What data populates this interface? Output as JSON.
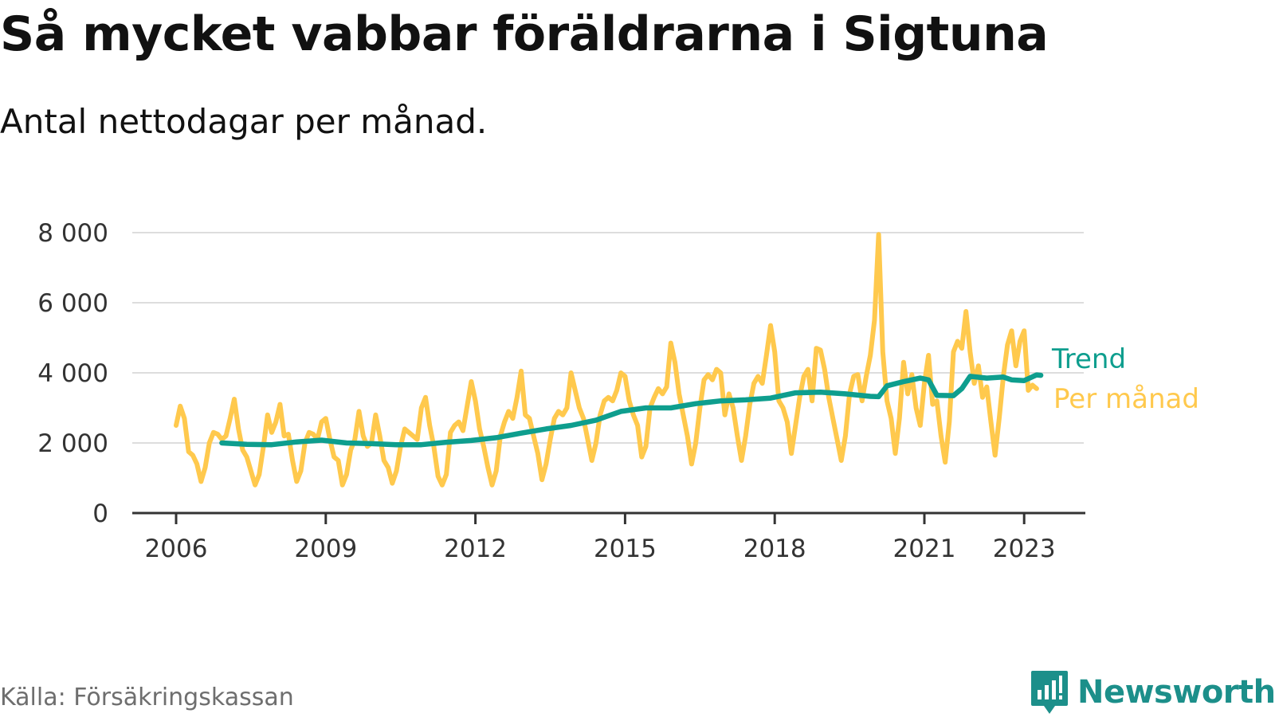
{
  "header": {
    "title": "Så mycket vabbar föräldrarna i Sigtuna",
    "subtitle": "Antal nettodagar per månad."
  },
  "footer": {
    "source": "Källa: Försäkringskassan",
    "brand": "Newsworthy",
    "brand_icon": "newsworthy-logo-icon"
  },
  "colors": {
    "monthly": "#FFC94D",
    "trend": "#0E9E8E",
    "grid": "#DDDDDD",
    "axis": "#333333",
    "brand": "#1C8F8A"
  },
  "chart_data": {
    "type": "line",
    "title": "Så mycket vabbar föräldrarna i Sigtuna",
    "subtitle": "Antal nettodagar per månad.",
    "xlabel": "",
    "ylabel": "",
    "xlim": [
      "2006-01",
      "2024-01"
    ],
    "ylim": [
      0,
      8000
    ],
    "x_ticks": [
      {
        "x": "2006-01",
        "label": "2006"
      },
      {
        "x": "2009-01",
        "label": "2009"
      },
      {
        "x": "2012-01",
        "label": "2012"
      },
      {
        "x": "2015-01",
        "label": "2015"
      },
      {
        "x": "2018-01",
        "label": "2018"
      },
      {
        "x": "2021-01",
        "label": "2021"
      },
      {
        "x": "2023-01",
        "label": "2023"
      }
    ],
    "y_ticks": [
      {
        "y": 0,
        "label": "0"
      },
      {
        "y": 2000,
        "label": "2 000"
      },
      {
        "y": 4000,
        "label": "4 000"
      },
      {
        "y": 6000,
        "label": "6 000"
      },
      {
        "y": 8000,
        "label": "8 000"
      }
    ],
    "grid": true,
    "legend": "inline labels at right end of lines",
    "series": [
      {
        "name": "Per månad",
        "label_position": "right",
        "points": [
          [
            "2006-01",
            2500
          ],
          [
            "2006-02",
            3050
          ],
          [
            "2006-03",
            2700
          ],
          [
            "2006-04",
            1750
          ],
          [
            "2006-05",
            1650
          ],
          [
            "2006-06",
            1400
          ],
          [
            "2006-07",
            900
          ],
          [
            "2006-08",
            1300
          ],
          [
            "2006-09",
            2000
          ],
          [
            "2006-10",
            2300
          ],
          [
            "2006-11",
            2250
          ],
          [
            "2006-12",
            2100
          ],
          [
            "2007-01",
            2200
          ],
          [
            "2007-02",
            2700
          ],
          [
            "2007-03",
            3250
          ],
          [
            "2007-04",
            2400
          ],
          [
            "2007-05",
            1800
          ],
          [
            "2007-06",
            1600
          ],
          [
            "2007-07",
            1200
          ],
          [
            "2007-08",
            800
          ],
          [
            "2007-09",
            1100
          ],
          [
            "2007-10",
            1900
          ],
          [
            "2007-11",
            2800
          ],
          [
            "2007-12",
            2300
          ],
          [
            "2008-01",
            2600
          ],
          [
            "2008-02",
            3100
          ],
          [
            "2008-03",
            2200
          ],
          [
            "2008-04",
            2250
          ],
          [
            "2008-05",
            1500
          ],
          [
            "2008-06",
            900
          ],
          [
            "2008-07",
            1200
          ],
          [
            "2008-08",
            2000
          ],
          [
            "2008-09",
            2300
          ],
          [
            "2008-10",
            2250
          ],
          [
            "2008-11",
            2100
          ],
          [
            "2008-12",
            2600
          ],
          [
            "2009-01",
            2700
          ],
          [
            "2009-02",
            2100
          ],
          [
            "2009-03",
            1600
          ],
          [
            "2009-04",
            1500
          ],
          [
            "2009-05",
            800
          ],
          [
            "2009-06",
            1100
          ],
          [
            "2009-07",
            1800
          ],
          [
            "2009-08",
            2100
          ],
          [
            "2009-09",
            2900
          ],
          [
            "2009-10",
            2200
          ],
          [
            "2009-11",
            1900
          ],
          [
            "2009-12",
            2000
          ],
          [
            "2010-01",
            2800
          ],
          [
            "2010-02",
            2200
          ],
          [
            "2010-03",
            1500
          ],
          [
            "2010-04",
            1300
          ],
          [
            "2010-05",
            850
          ],
          [
            "2010-06",
            1200
          ],
          [
            "2010-07",
            1900
          ],
          [
            "2010-08",
            2400
          ],
          [
            "2010-09",
            2300
          ],
          [
            "2010-10",
            2200
          ],
          [
            "2010-11",
            2100
          ],
          [
            "2010-12",
            3000
          ],
          [
            "2011-01",
            3300
          ],
          [
            "2011-02",
            2500
          ],
          [
            "2011-03",
            1900
          ],
          [
            "2011-04",
            1050
          ],
          [
            "2011-05",
            800
          ],
          [
            "2011-06",
            1100
          ],
          [
            "2011-07",
            2300
          ],
          [
            "2011-08",
            2500
          ],
          [
            "2011-09",
            2600
          ],
          [
            "2011-10",
            2350
          ],
          [
            "2011-12",
            3750
          ],
          [
            "2012-01",
            3200
          ],
          [
            "2012-02",
            2400
          ],
          [
            "2012-03",
            1900
          ],
          [
            "2012-04",
            1300
          ],
          [
            "2012-05",
            800
          ],
          [
            "2012-06",
            1200
          ],
          [
            "2012-07",
            2200
          ],
          [
            "2012-08",
            2600
          ],
          [
            "2012-09",
            2900
          ],
          [
            "2012-10",
            2700
          ],
          [
            "2012-11",
            3300
          ],
          [
            "2012-12",
            4050
          ],
          [
            "2013-01",
            2800
          ],
          [
            "2013-02",
            2700
          ],
          [
            "2013-03",
            2200
          ],
          [
            "2013-04",
            1700
          ],
          [
            "2013-05",
            950
          ],
          [
            "2013-06",
            1400
          ],
          [
            "2013-07",
            2100
          ],
          [
            "2013-08",
            2700
          ],
          [
            "2013-09",
            2900
          ],
          [
            "2013-10",
            2800
          ],
          [
            "2013-11",
            3000
          ],
          [
            "2013-12",
            4000
          ],
          [
            "2014-01",
            3500
          ],
          [
            "2014-02",
            3000
          ],
          [
            "2014-03",
            2700
          ],
          [
            "2014-04",
            2100
          ],
          [
            "2014-05",
            1500
          ],
          [
            "2014-06",
            2000
          ],
          [
            "2014-07",
            2800
          ],
          [
            "2014-08",
            3200
          ],
          [
            "2014-09",
            3300
          ],
          [
            "2014-10",
            3200
          ],
          [
            "2014-11",
            3500
          ],
          [
            "2014-12",
            4000
          ],
          [
            "2015-01",
            3900
          ],
          [
            "2015-02",
            3200
          ],
          [
            "2015-03",
            2800
          ],
          [
            "2015-04",
            2500
          ],
          [
            "2015-05",
            1600
          ],
          [
            "2015-06",
            1900
          ],
          [
            "2015-07",
            3000
          ],
          [
            "2015-08",
            3300
          ],
          [
            "2015-09",
            3550
          ],
          [
            "2015-10",
            3400
          ],
          [
            "2015-11",
            3600
          ],
          [
            "2015-12",
            4850
          ],
          [
            "2016-01",
            4300
          ],
          [
            "2016-02",
            3400
          ],
          [
            "2016-03",
            2800
          ],
          [
            "2016-04",
            2200
          ],
          [
            "2016-05",
            1400
          ],
          [
            "2016-06",
            2000
          ],
          [
            "2016-07",
            3000
          ],
          [
            "2016-08",
            3800
          ],
          [
            "2016-09",
            3950
          ],
          [
            "2016-10",
            3800
          ],
          [
            "2016-11",
            4100
          ],
          [
            "2016-12",
            4000
          ],
          [
            "2017-01",
            2800
          ],
          [
            "2017-02",
            3400
          ],
          [
            "2017-03",
            3000
          ],
          [
            "2017-04",
            2200
          ],
          [
            "2017-05",
            1500
          ],
          [
            "2017-06",
            2200
          ],
          [
            "2017-07",
            3100
          ],
          [
            "2017-08",
            3700
          ],
          [
            "2017-09",
            3900
          ],
          [
            "2017-10",
            3700
          ],
          [
            "2017-11",
            4500
          ],
          [
            "2017-12",
            5350
          ],
          [
            "2018-01",
            4600
          ],
          [
            "2018-02",
            3200
          ],
          [
            "2018-03",
            3000
          ],
          [
            "2018-04",
            2600
          ],
          [
            "2018-05",
            1700
          ],
          [
            "2018-06",
            2500
          ],
          [
            "2018-07",
            3300
          ],
          [
            "2018-08",
            3900
          ],
          [
            "2018-09",
            4100
          ],
          [
            "2018-10",
            3200
          ],
          [
            "2018-11",
            4700
          ],
          [
            "2018-12",
            4650
          ],
          [
            "2019-01",
            4100
          ],
          [
            "2019-02",
            3300
          ],
          [
            "2019-03",
            2700
          ],
          [
            "2019-04",
            2100
          ],
          [
            "2019-05",
            1500
          ],
          [
            "2019-06",
            2200
          ],
          [
            "2019-07",
            3400
          ],
          [
            "2019-08",
            3900
          ],
          [
            "2019-09",
            3950
          ],
          [
            "2019-10",
            3200
          ],
          [
            "2019-11",
            3900
          ],
          [
            "2019-12",
            4500
          ],
          [
            "2020-01",
            5500
          ],
          [
            "2020-02",
            7950
          ],
          [
            "2020-03",
            4600
          ],
          [
            "2020-04",
            3200
          ],
          [
            "2020-05",
            2700
          ],
          [
            "2020-06",
            1700
          ],
          [
            "2020-07",
            2700
          ],
          [
            "2020-08",
            4300
          ],
          [
            "2020-09",
            3400
          ],
          [
            "2020-10",
            3950
          ],
          [
            "2020-11",
            3000
          ],
          [
            "2020-12",
            2500
          ],
          [
            "2021-01",
            3700
          ],
          [
            "2021-02",
            4500
          ],
          [
            "2021-03",
            3100
          ],
          [
            "2021-04",
            3200
          ],
          [
            "2021-05",
            2200
          ],
          [
            "2021-06",
            1450
          ],
          [
            "2021-07",
            2600
          ],
          [
            "2021-08",
            4600
          ],
          [
            "2021-09",
            4900
          ],
          [
            "2021-10",
            4700
          ],
          [
            "2021-11",
            5750
          ],
          [
            "2021-12",
            4600
          ],
          [
            "2022-01",
            3700
          ],
          [
            "2022-02",
            4200
          ],
          [
            "2022-03",
            3300
          ],
          [
            "2022-04",
            3600
          ],
          [
            "2022-05",
            2600
          ],
          [
            "2022-06",
            1650
          ],
          [
            "2022-07",
            2700
          ],
          [
            "2022-08",
            3900
          ],
          [
            "2022-09",
            4800
          ],
          [
            "2022-10",
            5200
          ],
          [
            "2022-11",
            4200
          ],
          [
            "2022-12",
            4900
          ],
          [
            "2023-01",
            5200
          ],
          [
            "2023-02",
            3500
          ],
          [
            "2023-03",
            3650
          ],
          [
            "2023-04",
            3550
          ]
        ]
      },
      {
        "name": "Trend",
        "label_position": "right",
        "points": [
          [
            "2006-12",
            2000
          ],
          [
            "2007-06",
            1960
          ],
          [
            "2007-12",
            1950
          ],
          [
            "2008-06",
            2030
          ],
          [
            "2008-12",
            2080
          ],
          [
            "2009-06",
            2000
          ],
          [
            "2009-12",
            1980
          ],
          [
            "2010-06",
            1950
          ],
          [
            "2010-12",
            1950
          ],
          [
            "2011-06",
            2020
          ],
          [
            "2011-12",
            2070
          ],
          [
            "2012-06",
            2150
          ],
          [
            "2012-12",
            2280
          ],
          [
            "2013-06",
            2400
          ],
          [
            "2013-12",
            2500
          ],
          [
            "2014-06",
            2650
          ],
          [
            "2014-12",
            2900
          ],
          [
            "2015-06",
            3000
          ],
          [
            "2015-12",
            3000
          ],
          [
            "2016-06",
            3120
          ],
          [
            "2016-12",
            3200
          ],
          [
            "2017-06",
            3230
          ],
          [
            "2017-12",
            3280
          ],
          [
            "2018-06",
            3430
          ],
          [
            "2018-12",
            3450
          ],
          [
            "2019-06",
            3400
          ],
          [
            "2019-12",
            3330
          ],
          [
            "2020-02",
            3320
          ],
          [
            "2020-04",
            3630
          ],
          [
            "2020-08",
            3750
          ],
          [
            "2020-12",
            3850
          ],
          [
            "2021-02",
            3800
          ],
          [
            "2021-04",
            3360
          ],
          [
            "2021-08",
            3350
          ],
          [
            "2021-10",
            3550
          ],
          [
            "2021-12",
            3900
          ],
          [
            "2022-04",
            3850
          ],
          [
            "2022-08",
            3880
          ],
          [
            "2022-10",
            3800
          ],
          [
            "2023-01",
            3780
          ],
          [
            "2023-04",
            3940
          ],
          [
            "2023-05",
            3930
          ]
        ]
      }
    ]
  }
}
